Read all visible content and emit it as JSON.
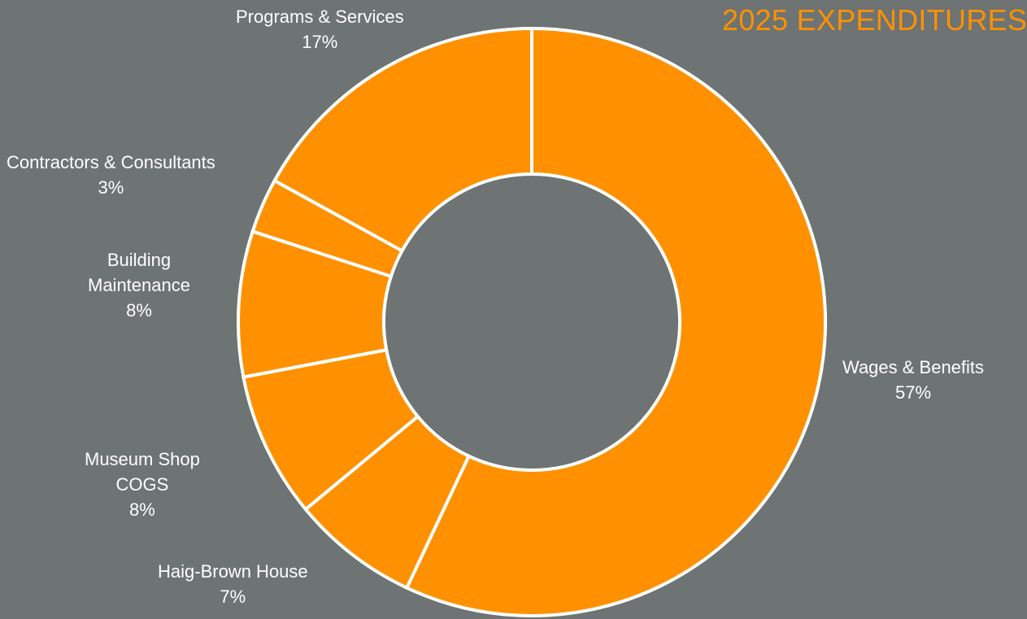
{
  "chart_data": {
    "type": "pie",
    "title": "2025 EXPENDITURES",
    "donut": true,
    "start_angle_deg": 0,
    "direction": "clockwise",
    "slices": [
      {
        "label_lines": [
          "Wages & Benefits"
        ],
        "value": 57,
        "pct": "57%"
      },
      {
        "label_lines": [
          "Haig-Brown House"
        ],
        "value": 7,
        "pct": "7%"
      },
      {
        "label_lines": [
          "Museum Shop",
          "COGS"
        ],
        "value": 8,
        "pct": "8%"
      },
      {
        "label_lines": [
          "Building",
          "Maintenance"
        ],
        "value": 8,
        "pct": "8%"
      },
      {
        "label_lines": [
          "Contractors & Consultants"
        ],
        "value": 3,
        "pct": "3%"
      },
      {
        "label_lines": [
          "Programs & Services"
        ],
        "value": 17,
        "pct": "17%"
      }
    ]
  },
  "colors": {
    "background": "#6e7373",
    "slice_fill": "#ff9100",
    "slice_stroke": "#ffffff",
    "title": "#ff9100",
    "label_text": "#ffffff"
  }
}
